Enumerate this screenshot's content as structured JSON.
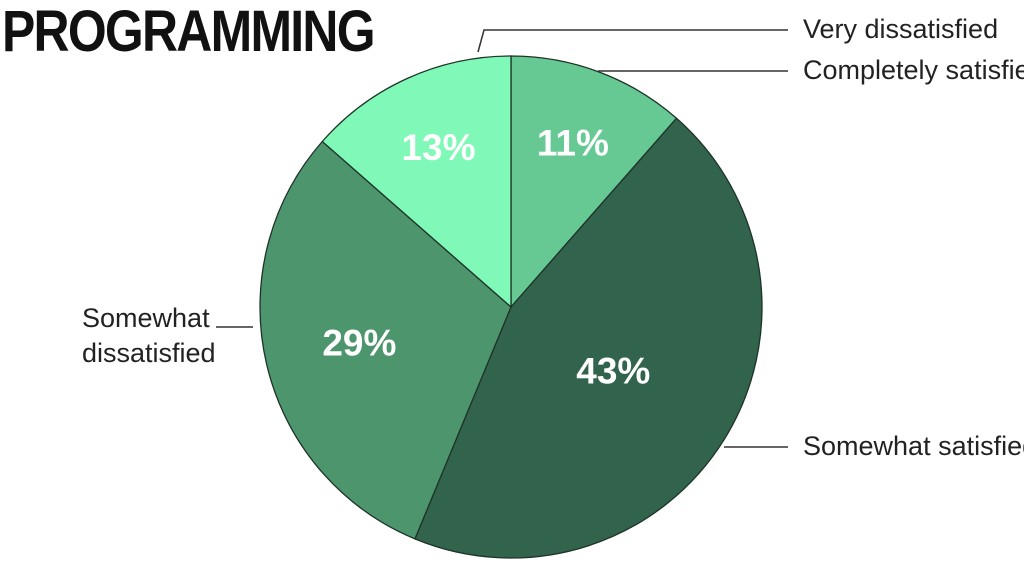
{
  "chart_data": {
    "type": "pie",
    "title": "PROGRAMMING",
    "slices": [
      {
        "label": "Completely satisfied",
        "value": 11,
        "display": "11%",
        "color": "#66c994"
      },
      {
        "label": "Somewhat satisfied",
        "value": 43,
        "display": "43%",
        "color": "#32634c"
      },
      {
        "label": "Somewhat dissatisfied",
        "value": 29,
        "display": "29%",
        "color": "#4d966d"
      },
      {
        "label": "Very dissatisfied",
        "value": 13,
        "display": "13%",
        "color": "#80f9b8"
      }
    ]
  }
}
